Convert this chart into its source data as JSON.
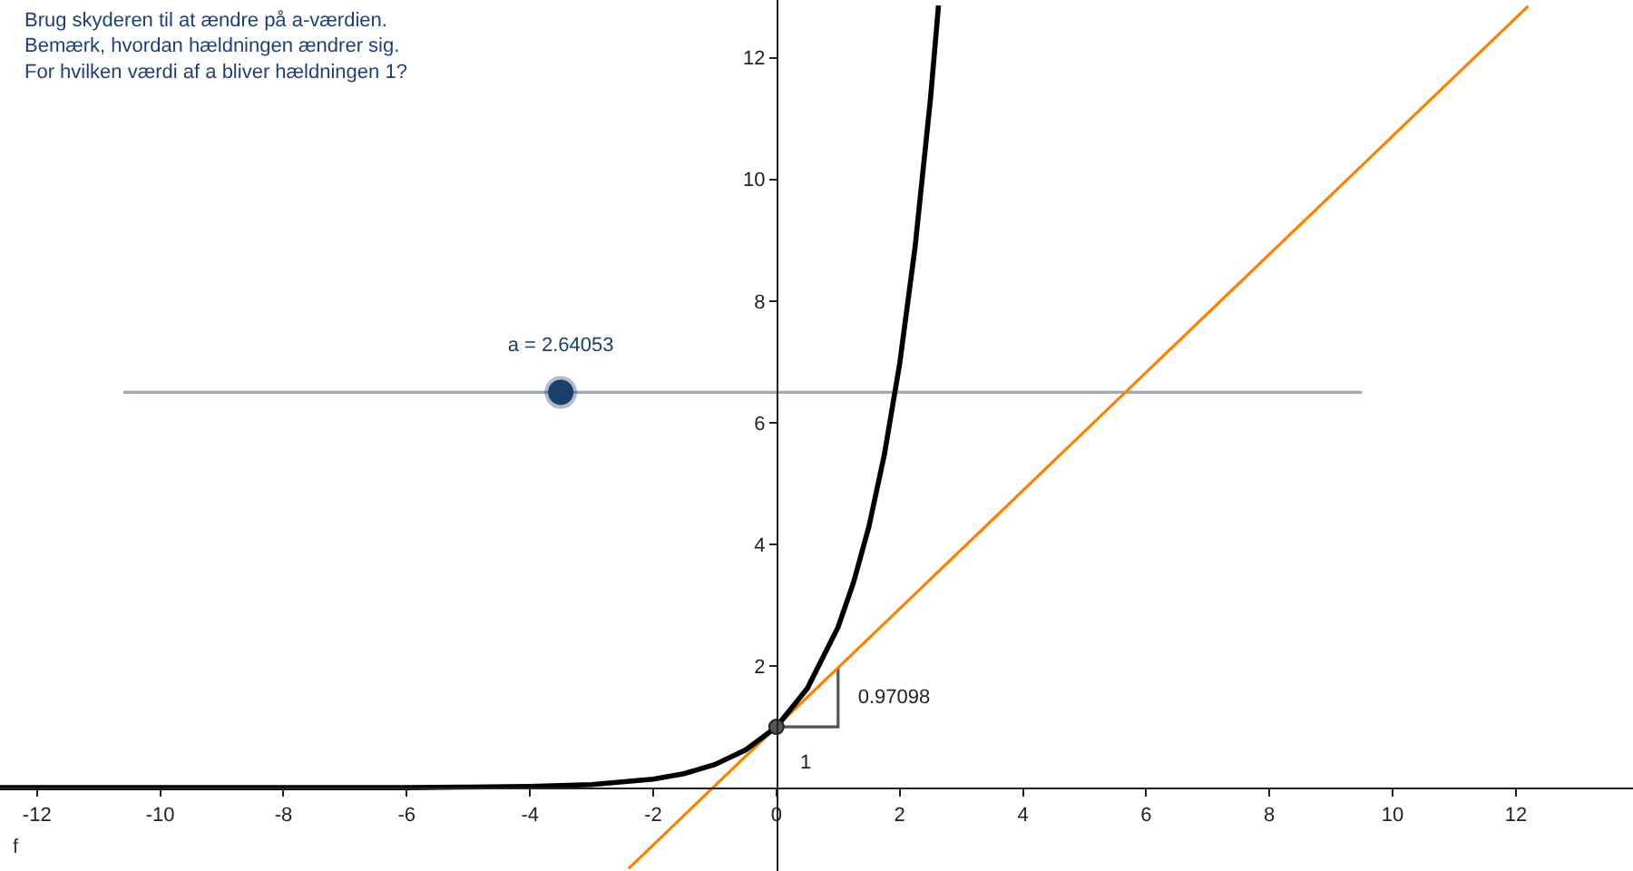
{
  "chart_data": {
    "type": "line",
    "title": "Brug skyderen til at ændre på a-værdien.\nBemærk, hvordan hældningen ændrer sig.\nFor hvilken værdi af a bliver hældningen 1?",
    "xlim": [
      -12.6,
      13.9
    ],
    "ylim": [
      -1.37,
      12.95
    ],
    "xticks": [
      -12,
      -10,
      -8,
      -6,
      -4,
      -2,
      0,
      2,
      4,
      6,
      8,
      10,
      12
    ],
    "yticks": [
      2,
      4,
      6,
      8,
      10,
      12
    ],
    "grid": false,
    "series": [
      {
        "color": "#99aabb",
        "marker": "none",
        "x": [
          -10.6,
          9.5
        ],
        "values": [
          6.5,
          6.5
        ]
      },
      {
        "color": "#555555",
        "marker": "none",
        "x": [
          0,
          1,
          1
        ],
        "values": [
          1,
          1,
          1.97
        ]
      },
      {
        "color": "#ff7f00",
        "marker": "none",
        "x": [
          -2.4,
          12.2
        ],
        "values": [
          -1.33,
          12.85
        ]
      },
      {
        "color": "#000000",
        "marker": "none",
        "x": [
          -12.6,
          -10,
          -8,
          -6,
          -5,
          -4,
          -3,
          -2,
          -1.5,
          -1,
          -0.5,
          0,
          0.5,
          1,
          1.25,
          1.5,
          1.75,
          2,
          2.25,
          2.5,
          2.63
        ],
        "values": [
          0,
          0,
          0,
          0,
          0.01,
          0.02,
          0.05,
          0.14,
          0.23,
          0.38,
          0.62,
          1,
          1.63,
          2.64,
          3.37,
          4.29,
          5.47,
          6.97,
          8.89,
          11.33,
          12.86
        ]
      },
      {
        "type": "scatter",
        "color": "#555555",
        "marker": "circle",
        "x": [
          0
        ],
        "values": [
          1
        ]
      },
      {
        "type": "scatter",
        "color": "#1a3f6b",
        "marker": "circle",
        "x": [
          -3.5
        ],
        "values": [
          6.5
        ]
      }
    ],
    "annotations": [
      "a = 2.64053",
      "0.97098",
      "1",
      "f"
    ]
  }
}
